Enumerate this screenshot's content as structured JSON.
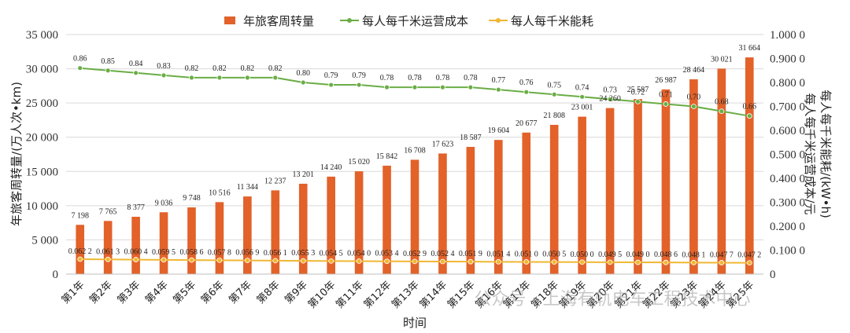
{
  "chart_data": {
    "type": "bar",
    "legend": {
      "placement": "top",
      "items": [
        "年旅客周转量",
        "每人每千米运营成本",
        "每人每千米能耗"
      ]
    },
    "xlabel": "时间",
    "ylabel_left": "年旅客周转量/(万人次•km)",
    "ylabel_right": [
      "每人每千米能耗/(kW•h)",
      "每人每千米运营成本/元"
    ],
    "ylim_left": [
      0,
      35000
    ],
    "ylim_right": [
      0,
      1.0
    ],
    "left_ticks": [
      "0",
      "5 000",
      "10 000",
      "15 000",
      "20 000",
      "25 000",
      "30 000",
      "35 000"
    ],
    "right_ticks": [
      "0",
      "0.100 0",
      "0.200 0",
      "0.300 0",
      "0.400 0",
      "0.500 0",
      "0.600 0",
      "0.700 0",
      "0.800 0",
      "0.900 0",
      "1.000 0"
    ],
    "categories": [
      "第1年",
      "第2年",
      "第3年",
      "第4年",
      "第5年",
      "第6年",
      "第7年",
      "第8年",
      "第9年",
      "第10年",
      "第11年",
      "第12年",
      "第13年",
      "第14年",
      "第15年",
      "第16年",
      "第17年",
      "第18年",
      "第19年",
      "第20年",
      "第21年",
      "第22年",
      "第23年",
      "第24年",
      "第25年"
    ],
    "series": [
      {
        "name": "年旅客周转量",
        "kind": "bar",
        "axis": "left",
        "color": "#e2622a",
        "values": [
          7198,
          7765,
          8377,
          9036,
          9748,
          10516,
          11344,
          12237,
          13201,
          14240,
          15020,
          15842,
          16708,
          17623,
          18587,
          19604,
          20677,
          21808,
          23001,
          24260,
          25587,
          26987,
          28464,
          30021,
          31664
        ],
        "labels": [
          "7 198",
          "7 765",
          "8 377",
          "9 036",
          "9 748",
          "10 516",
          "11 344",
          "12 237",
          "13 201",
          "14 240",
          "15 020",
          "15 842",
          "16 708",
          "17 623",
          "18 587",
          "19 604",
          "20 677",
          "21 808",
          "23 001",
          "24 260",
          "25 587",
          "26 987",
          "28 464",
          "30 021",
          "31 664"
        ]
      },
      {
        "name": "每人每千米运营成本",
        "kind": "line",
        "axis": "right",
        "color": "#6aad45",
        "values": [
          0.86,
          0.85,
          0.84,
          0.83,
          0.82,
          0.82,
          0.82,
          0.82,
          0.8,
          0.79,
          0.79,
          0.78,
          0.78,
          0.78,
          0.78,
          0.77,
          0.76,
          0.75,
          0.74,
          0.73,
          0.72,
          0.71,
          0.7,
          0.68,
          0.66
        ],
        "labels": [
          "0.86",
          "0.85",
          "0.84",
          "0.83",
          "0.82",
          "0.82",
          "0.82",
          "0.82",
          "0.80",
          "0.79",
          "0.79",
          "0.78",
          "0.78",
          "0.78",
          "0.78",
          "0.77",
          "0.76",
          "0.75",
          "0.74",
          "0.73",
          "0.72",
          "0.71",
          "0.70",
          "0.68",
          "0.66"
        ]
      },
      {
        "name": "每人每千米能耗",
        "kind": "line",
        "axis": "right",
        "color": "#f0b732",
        "values": [
          0.0622,
          0.0613,
          0.0604,
          0.0595,
          0.0586,
          0.0578,
          0.0569,
          0.0561,
          0.0553,
          0.0545,
          0.054,
          0.0534,
          0.0529,
          0.0524,
          0.0519,
          0.0514,
          0.051,
          0.0505,
          0.05,
          0.0495,
          0.049,
          0.0486,
          0.0481,
          0.0477,
          0.0472
        ],
        "labels": [
          "0.062 2",
          "0.061 3",
          "0.060 4",
          "0.059 5",
          "0.058 6",
          "0.057 8",
          "0.056 9",
          "0.056 1",
          "0.055 3",
          "0.054 5",
          "0.054 0",
          "0.053 4",
          "0.052 9",
          "0.052 4",
          "0.051 9",
          "0.051 4",
          "0.051 0",
          "0.050 5",
          "0.050 0",
          "0.049 5",
          "0.049 0",
          "0.048 6",
          "0.048 1",
          "0.047 7",
          "0.047 2"
        ]
      }
    ],
    "grid": "horizontal"
  },
  "watermark": "公众号 · 上海有轨电车工程技术中心"
}
